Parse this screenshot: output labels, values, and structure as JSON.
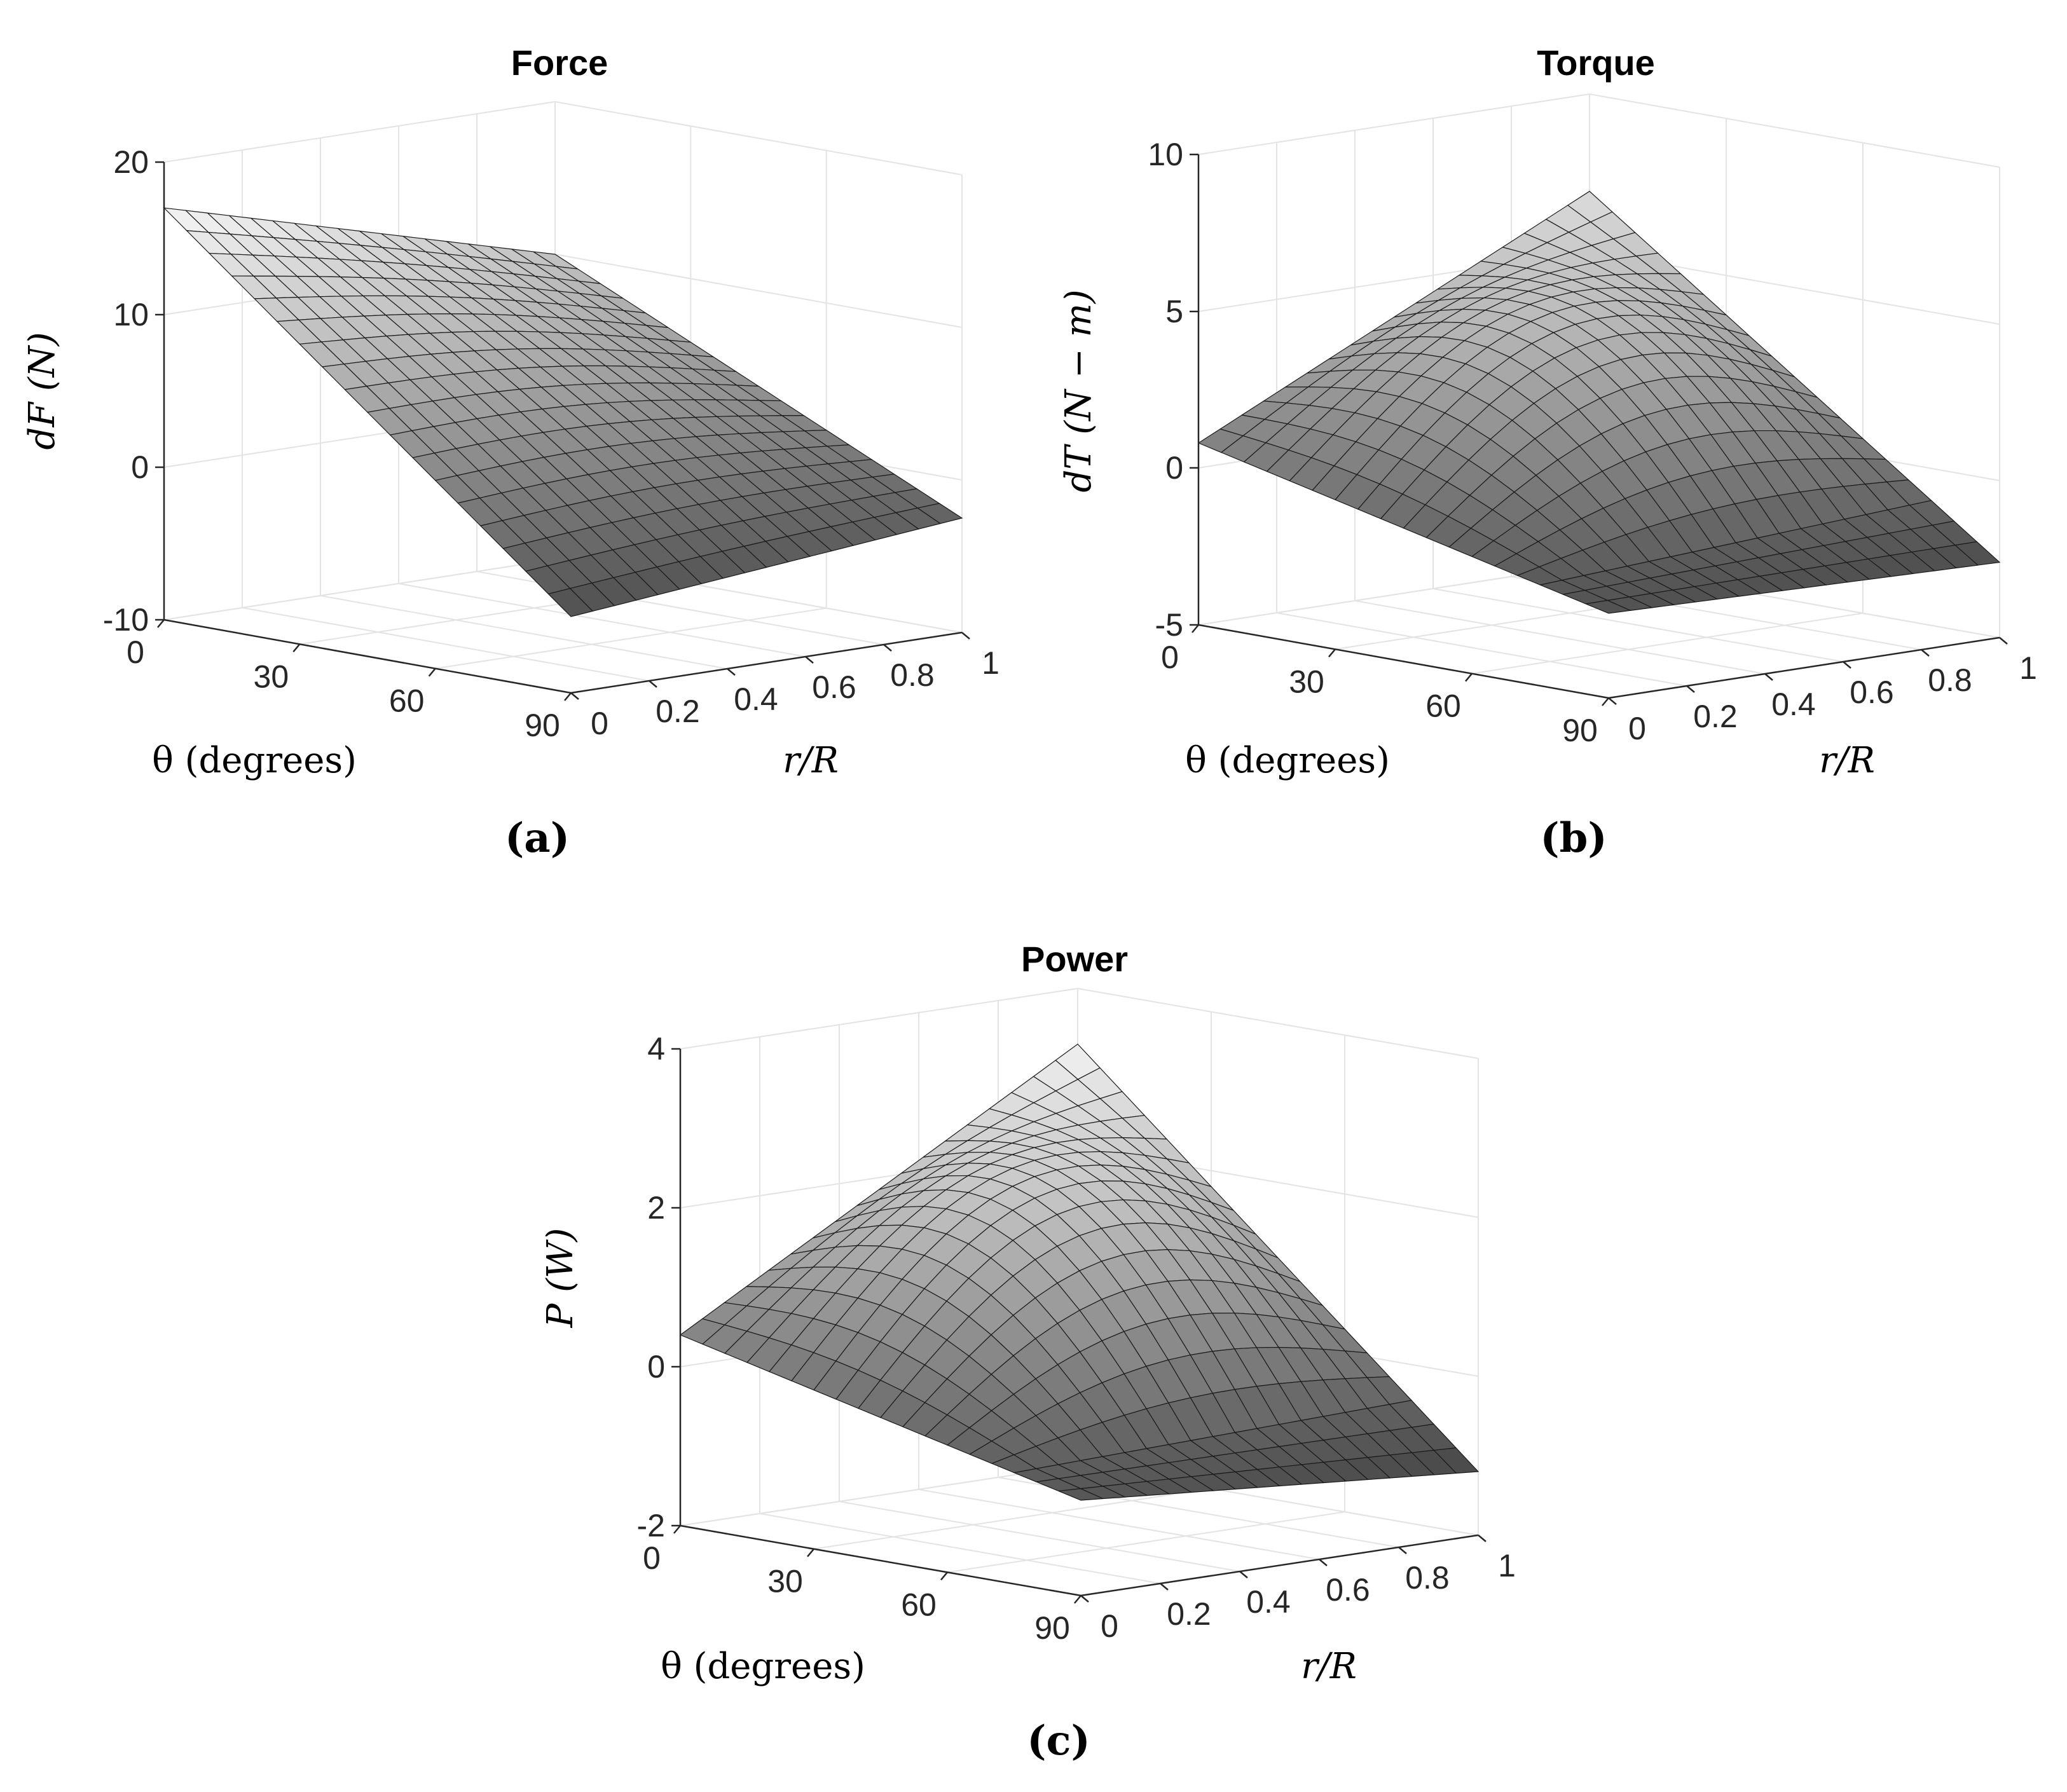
{
  "figure": {
    "panels": [
      {
        "letter": "(a)"
      },
      {
        "letter": "(b)"
      },
      {
        "letter": "(c)"
      }
    ]
  },
  "chart_data": [
    {
      "type": "surface",
      "title": "Force",
      "zlabel": "dF (N)",
      "xlabel": "θ (degrees)",
      "ylabel": "r/R",
      "zlim": [
        -10,
        20
      ],
      "zticks": [
        "-10",
        "0",
        "10",
        "20"
      ],
      "xticks": [
        "0",
        "30",
        "60",
        "90"
      ],
      "yticks": [
        "0",
        "0.2",
        "0.4",
        "0.6",
        "0.8",
        "1"
      ],
      "theta": [
        0,
        90
      ],
      "r_over_R": [
        0,
        1
      ],
      "surface_samples": [
        {
          "theta": 0,
          "r": 0,
          "value": 17
        },
        {
          "theta": 90,
          "r": 0,
          "value": -5
        },
        {
          "theta": 90,
          "r": 1,
          "value": -2.5
        },
        {
          "theta": 0,
          "r": 1,
          "value": 10
        }
      ],
      "grid": true
    },
    {
      "type": "surface",
      "title": "Torque",
      "zlabel": "dT (N − m)",
      "xlabel": "θ (degrees)",
      "ylabel": "r/R",
      "zlim": [
        -5,
        10
      ],
      "zticks": [
        "-5",
        "0",
        "5",
        "10"
      ],
      "xticks": [
        "0",
        "30",
        "60",
        "90"
      ],
      "yticks": [
        "0",
        "0.2",
        "0.4",
        "0.6",
        "0.8",
        "1"
      ],
      "theta": [
        0,
        90
      ],
      "r_over_R": [
        0,
        1
      ],
      "surface_samples": [
        {
          "theta": 0,
          "r": 0,
          "value": 0.8
        },
        {
          "theta": 90,
          "r": 0,
          "value": -2.3
        },
        {
          "theta": 90,
          "r": 1,
          "value": -2.6
        },
        {
          "theta": 0,
          "r": 1,
          "value": 6.9
        },
        {
          "theta": 45,
          "r": 0.55,
          "value": 2.0
        }
      ],
      "grid": true
    },
    {
      "type": "surface",
      "title": "Power",
      "zlabel": "P (W)",
      "xlabel": "θ (degrees)",
      "ylabel": "r/R",
      "zlim": [
        -2,
        4
      ],
      "zticks": [
        "-2",
        "0",
        "2",
        "4"
      ],
      "xticks": [
        "0",
        "30",
        "60",
        "90"
      ],
      "yticks": [
        "0",
        "0.2",
        "0.4",
        "0.6",
        "0.8",
        "1"
      ],
      "theta": [
        0,
        90
      ],
      "r_over_R": [
        0,
        1
      ],
      "surface_samples": [
        {
          "theta": 0,
          "r": 0,
          "value": 0.4
        },
        {
          "theta": 90,
          "r": 0,
          "value": -0.8
        },
        {
          "theta": 90,
          "r": 1,
          "value": -1.2
        },
        {
          "theta": 0,
          "r": 1,
          "value": 3.3
        },
        {
          "theta": 45,
          "r": 0.55,
          "value": 1.0
        }
      ],
      "grid": true
    }
  ]
}
